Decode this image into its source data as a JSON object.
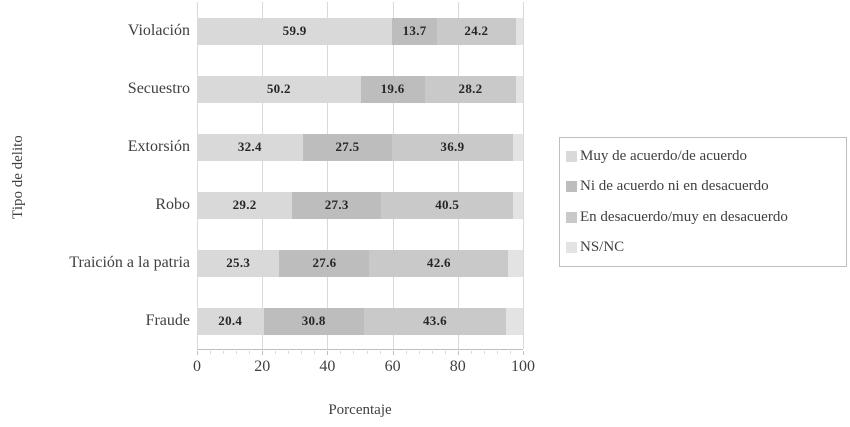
{
  "chart_data": {
    "type": "bar",
    "orientation": "horizontal",
    "stacked": true,
    "title": "",
    "xlabel": "Porcentaje",
    "ylabel": "Tipo de delito",
    "xlim": [
      0,
      100
    ],
    "x_ticks": [
      0,
      20,
      40,
      60,
      80,
      100
    ],
    "minor_tick_unit": 4,
    "grid": "vertical-only",
    "legend_position": "right",
    "categories": [
      "Violación",
      "Secuestro",
      "Extorsión",
      "Robo",
      "Traición a la patria",
      "Fraude"
    ],
    "series": [
      {
        "name": "Muy de acuerdo/de acuerdo",
        "color": "#d9d9d9",
        "show_labels": true,
        "values": [
          59.9,
          50.2,
          32.4,
          29.2,
          25.3,
          20.4
        ]
      },
      {
        "name": "Ni de acuerdo ni en desacuerdo",
        "color": "#bdbdbd",
        "show_labels": true,
        "values": [
          13.7,
          19.6,
          27.5,
          27.3,
          27.6,
          30.8
        ]
      },
      {
        "name": "En desacuerdo/muy en desacuerdo",
        "color": "#c9c9c9",
        "show_labels": true,
        "values": [
          24.2,
          28.2,
          36.9,
          40.5,
          42.6,
          43.6
        ]
      },
      {
        "name": "NS/NC",
        "color": "#e3e3e3",
        "show_labels": false,
        "values": [
          2.2,
          2.0,
          3.2,
          3.0,
          4.5,
          5.2
        ]
      }
    ]
  }
}
